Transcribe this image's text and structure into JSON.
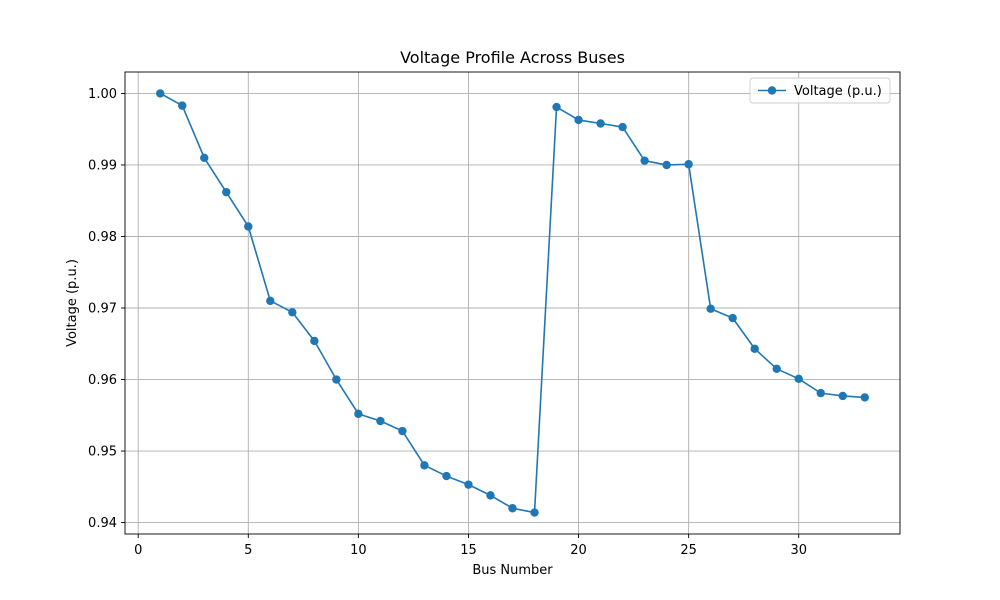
{
  "chart_data": {
    "type": "line",
    "title": "Voltage Profile Across Buses",
    "xlabel": "Bus Number",
    "ylabel": "Voltage (p.u.)",
    "xlim": [
      -0.6,
      34.6
    ],
    "ylim": [
      0.9384,
      1.003
    ],
    "xticks": [
      0,
      5,
      10,
      15,
      20,
      25,
      30
    ],
    "yticks": [
      0.94,
      0.95,
      0.96,
      0.97,
      0.98,
      0.99,
      1.0
    ],
    "ytick_labels": [
      "0.94",
      "0.95",
      "0.96",
      "0.97",
      "0.98",
      "0.99",
      "1.00"
    ],
    "grid": true,
    "legend_position": "top-right",
    "series": [
      {
        "name": "Voltage (p.u.)",
        "color": "#1f77b4",
        "marker": "circle",
        "x": [
          1,
          2,
          3,
          4,
          5,
          6,
          7,
          8,
          9,
          10,
          11,
          12,
          13,
          14,
          15,
          16,
          17,
          18,
          19,
          20,
          21,
          22,
          23,
          24,
          25,
          26,
          27,
          28,
          29,
          30,
          31,
          32,
          33
        ],
        "y": [
          1.0,
          0.9983,
          0.991,
          0.9862,
          0.9814,
          0.971,
          0.9694,
          0.9654,
          0.96,
          0.9552,
          0.9542,
          0.9528,
          0.948,
          0.9465,
          0.9453,
          0.9438,
          0.942,
          0.9414,
          0.9981,
          0.9963,
          0.9958,
          0.9953,
          0.9906,
          0.99,
          0.9901,
          0.9699,
          0.9686,
          0.9643,
          0.9615,
          0.9601,
          0.9581,
          0.9577,
          0.9575
        ]
      }
    ]
  }
}
